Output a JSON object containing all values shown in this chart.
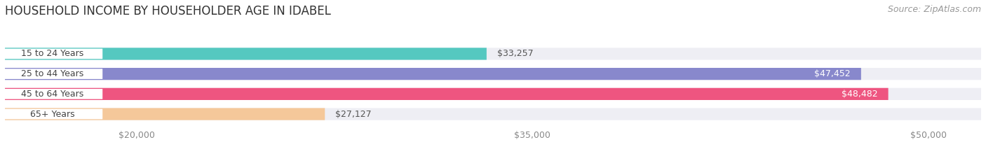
{
  "title": "HOUSEHOLD INCOME BY HOUSEHOLDER AGE IN IDABEL",
  "source": "Source: ZipAtlas.com",
  "categories": [
    "15 to 24 Years",
    "25 to 44 Years",
    "45 to 64 Years",
    "65+ Years"
  ],
  "values": [
    33257,
    47452,
    48482,
    27127
  ],
  "bar_colors": [
    "#55C8C0",
    "#8888CC",
    "#EE5580",
    "#F5C89A"
  ],
  "bar_bg_color": "#EEEEF4",
  "value_labels": [
    "$33,257",
    "$47,452",
    "$48,482",
    "$27,127"
  ],
  "value_label_inside": [
    false,
    true,
    true,
    false
  ],
  "xlim": [
    15000,
    52000
  ],
  "xstart": 15000,
  "xticks": [
    20000,
    35000,
    50000
  ],
  "xtick_labels": [
    "$20,000",
    "$35,000",
    "$50,000"
  ],
  "background_color": "#FFFFFF",
  "bar_height": 0.6,
  "label_pill_color": "#FFFFFF",
  "title_fontsize": 12,
  "source_fontsize": 9,
  "label_fontsize": 9,
  "value_fontsize": 9,
  "tick_fontsize": 9
}
